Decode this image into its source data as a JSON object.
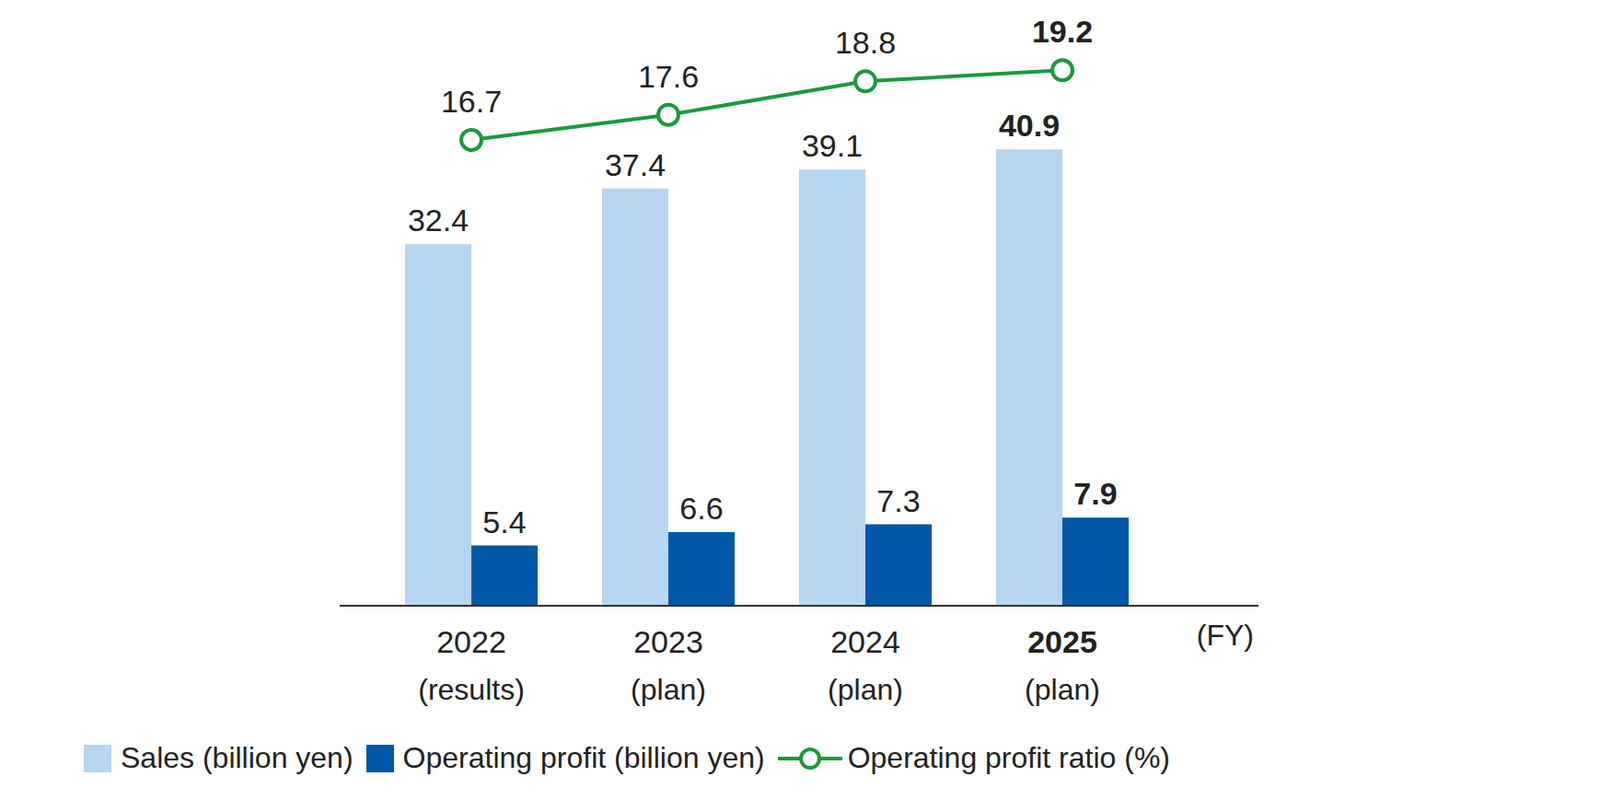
{
  "chart_data": {
    "type": "bar",
    "categories": [
      "2022\n(results)",
      "2023\n(plan)",
      "2024\n(plan)",
      "2025\n(plan)"
    ],
    "x_label": "(FY)",
    "series": [
      {
        "name": "Sales (billion yen)",
        "type": "bar",
        "color": "#b5d5f0",
        "values": [
          32.4,
          37.4,
          39.1,
          40.9
        ]
      },
      {
        "name": "Operating profit (billion yen)",
        "type": "bar",
        "color": "#0057a8",
        "values": [
          5.4,
          6.6,
          7.3,
          7.9
        ]
      },
      {
        "name": "Operating profit ratio (%)",
        "type": "line",
        "axis": "y2",
        "color": "#1a9a3c",
        "marker": "circle",
        "values": [
          16.7,
          17.6,
          18.8,
          19.2
        ]
      }
    ],
    "ylim": [
      0,
      50
    ],
    "yticks": [
      0,
      50
    ],
    "y2lim": [
      0,
      20
    ],
    "y2ticks": [
      0,
      20
    ],
    "data_labels": true,
    "tick_labels": "x",
    "legend": "bottom",
    "grid": false
  }
}
